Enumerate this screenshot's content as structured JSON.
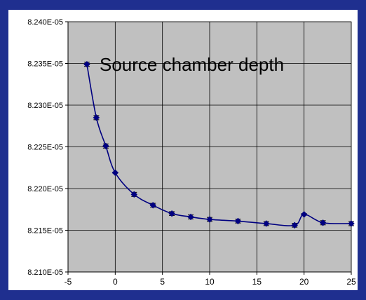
{
  "colors": {
    "background": "#1f2f8f",
    "panel": "#ffffff",
    "plot_area": "#c0c0c0",
    "series": "#000080",
    "grid": "#000000"
  },
  "chart_data": {
    "type": "line",
    "title": "Source chamber depth",
    "xlabel": "",
    "ylabel": "",
    "xlim": [
      -5,
      25
    ],
    "ylim": [
      8.21e-05,
      8.24e-05
    ],
    "x_ticks": [
      -5,
      0,
      5,
      10,
      15,
      20,
      25
    ],
    "x_tick_labels": [
      "-5",
      "0",
      "5",
      "10",
      "15",
      "20",
      "25"
    ],
    "y_ticks": [
      8.21e-05,
      8.215e-05,
      8.22e-05,
      8.225e-05,
      8.23e-05,
      8.235e-05,
      8.24e-05
    ],
    "y_tick_labels": [
      "8.210E-05",
      "8.215E-05",
      "8.220E-05",
      "8.225E-05",
      "8.230E-05",
      "8.235E-05",
      "8.240E-05"
    ],
    "grid": true,
    "marker": "diamond",
    "smoothed": true,
    "series": [
      {
        "x": [
          -3,
          -2,
          -1,
          0,
          2,
          4,
          6,
          8,
          10,
          13,
          16,
          19,
          20,
          22,
          25
        ],
        "y": [
          8.2349e-05,
          8.2285e-05,
          8.2251e-05,
          8.2219e-05,
          8.2193e-05,
          8.218e-05,
          8.217e-05,
          8.2166e-05,
          8.2163e-05,
          8.2161e-05,
          8.2158e-05,
          8.2156e-05,
          8.2169e-05,
          8.2159e-05,
          8.2158e-05
        ],
        "error": [
          2.5e-09,
          2.5e-09,
          2.5e-09,
          5e-10,
          2.5e-09,
          2.3e-09,
          2.3e-09,
          2.4e-09,
          2.4e-09,
          2.3e-09,
          2.4e-09,
          2.3e-09,
          1e-09,
          2.5e-09,
          2.5e-09
        ]
      }
    ]
  }
}
